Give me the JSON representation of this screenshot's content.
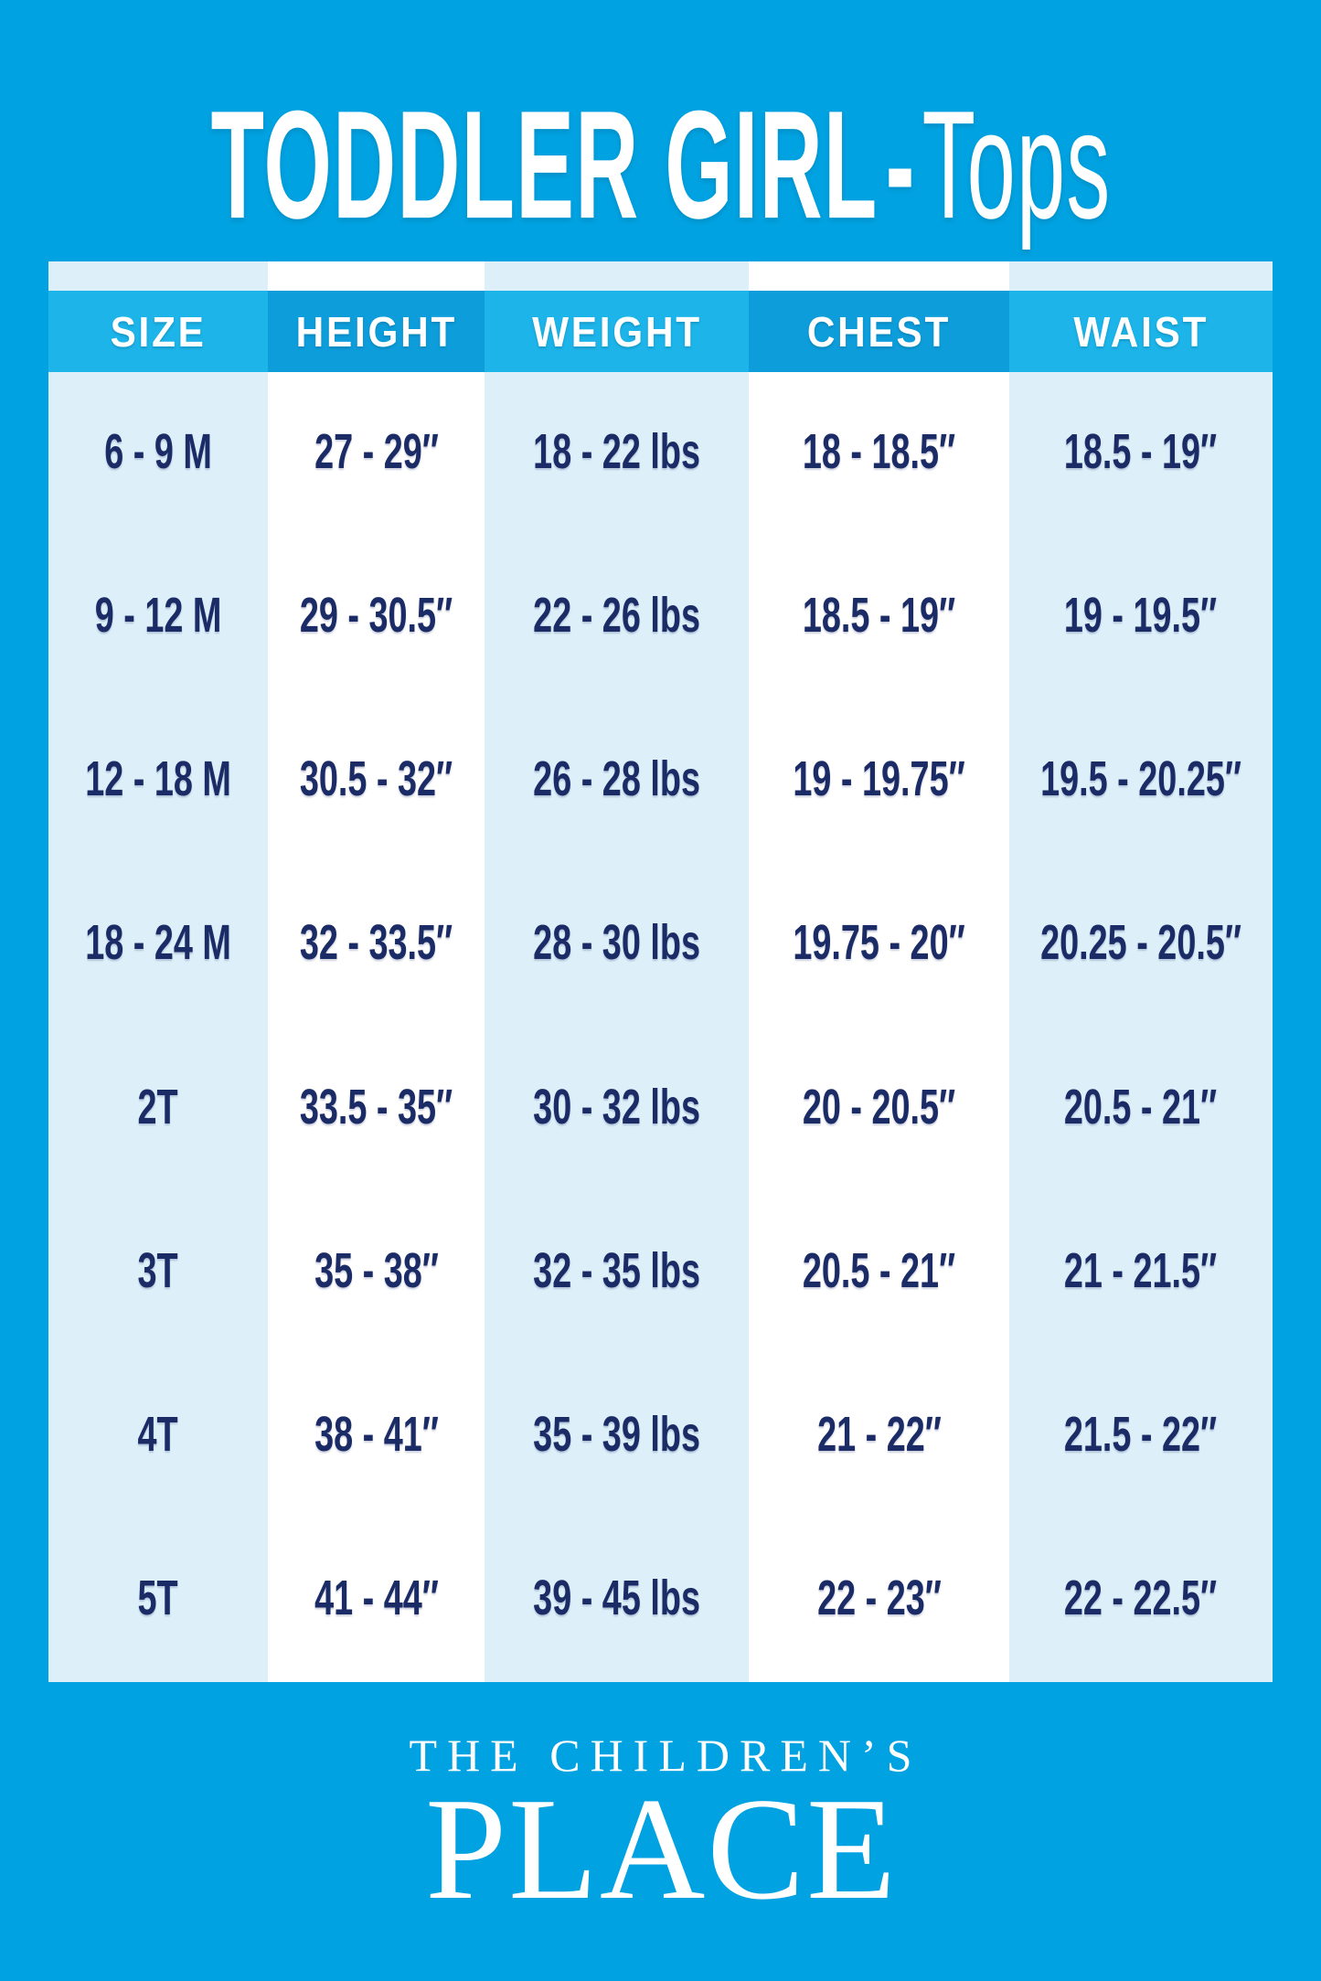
{
  "title": {
    "category": "TODDLER GIRL",
    "separator": "-",
    "garment": "Tops"
  },
  "table": {
    "columns": [
      {
        "key": "size",
        "label": "SIZE",
        "header_bg": "#1cb4e9",
        "body_bg": "#ddf0fa"
      },
      {
        "key": "height",
        "label": "HEIGHT",
        "header_bg": "#0d9ddb",
        "body_bg": "#ffffff"
      },
      {
        "key": "weight",
        "label": "WEIGHT",
        "header_bg": "#1cb4e9",
        "body_bg": "#ddf0fa"
      },
      {
        "key": "chest",
        "label": "CHEST",
        "header_bg": "#0d9ddb",
        "body_bg": "#ffffff"
      },
      {
        "key": "waist",
        "label": "WAIST",
        "header_bg": "#1cb4e9",
        "body_bg": "#ddf0fa"
      }
    ],
    "rows": [
      [
        "6 - 9 M",
        "27 - 29″",
        "18 - 22 lbs",
        "18 - 18.5″",
        "18.5 - 19″"
      ],
      [
        "9 - 12 M",
        "29 - 30.5″",
        "22 - 26 lbs",
        "18.5 - 19″",
        "19 - 19.5″"
      ],
      [
        "12 - 18 M",
        "30.5 - 32″",
        "26 - 28 lbs",
        "19 - 19.75″",
        "19.5 - 20.25″"
      ],
      [
        "18 - 24 M",
        "32 - 33.5″",
        "28 - 30 lbs",
        "19.75 - 20″",
        "20.25 - 20.5″"
      ],
      [
        "2T",
        "33.5 - 35″",
        "30 - 32 lbs",
        "20 - 20.5″",
        "20.5 - 21″"
      ],
      [
        "3T",
        "35 - 38″",
        "32 - 35 lbs",
        "20.5 - 21″",
        "21 - 21.5″"
      ],
      [
        "4T",
        "38 - 41″",
        "35 - 39 lbs",
        "21 - 22″",
        "21.5 - 22″"
      ],
      [
        "5T",
        "41 - 44″",
        "39 - 45 lbs",
        "22 - 23″",
        "22 - 22.5″"
      ]
    ]
  },
  "footer": {
    "brand_line1": "THE CHILDREN’S",
    "brand_line2": "PLACE"
  },
  "colors": {
    "background": "#00a2e1",
    "header_light_blue": "#1cb4e9",
    "header_dark_blue": "#0d9ddb",
    "pale_column": "#ddf0fa",
    "white_column": "#ffffff",
    "body_text_navy": "#1b2b66",
    "header_text": "#ffffff"
  },
  "chart_data": {
    "type": "table",
    "title": "TODDLER GIRL - Tops",
    "columns": [
      "SIZE",
      "HEIGHT",
      "WEIGHT",
      "CHEST",
      "WAIST"
    ],
    "rows": [
      [
        "6 - 9 M",
        "27 - 29″",
        "18 - 22 lbs",
        "18 - 18.5″",
        "18.5 - 19″"
      ],
      [
        "9 - 12 M",
        "29 - 30.5″",
        "22 - 26 lbs",
        "18.5 - 19″",
        "19 - 19.5″"
      ],
      [
        "12 - 18 M",
        "30.5 - 32″",
        "26 - 28 lbs",
        "19 - 19.75″",
        "19.5 - 20.25″"
      ],
      [
        "18 - 24 M",
        "32 - 33.5″",
        "28 - 30 lbs",
        "19.75 - 20″",
        "20.25 - 20.5″"
      ],
      [
        "2T",
        "33.5 - 35″",
        "30 - 32 lbs",
        "20 - 20.5″",
        "20.5 - 21″"
      ],
      [
        "3T",
        "35 - 38″",
        "32 - 35 lbs",
        "20.5 - 21″",
        "21 - 21.5″"
      ],
      [
        "4T",
        "38 - 41″",
        "35 - 39 lbs",
        "21 - 22″",
        "21.5 - 22″"
      ],
      [
        "5T",
        "41 - 44″",
        "39 - 45 lbs",
        "22 - 23″",
        "22 - 22.5″"
      ]
    ],
    "brand": "THE CHILDREN'S PLACE",
    "notes": "Size chart infographic; units are inches (″) and pounds (lbs)"
  }
}
